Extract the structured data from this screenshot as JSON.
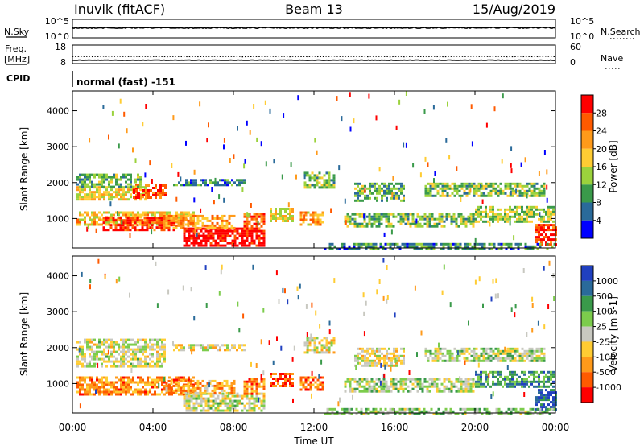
{
  "header": {
    "station": "Inuvik (fitACF)",
    "beam": "Beam 13",
    "date": "15/Aug/2019"
  },
  "top_panels": {
    "nsky": {
      "label": "N.Sky",
      "ytop": "10^5",
      "ybot": "10^0",
      "right_label": "N.Search",
      "rtop": "10^5",
      "rbot": "10^0"
    },
    "freq": {
      "label1": "Freq.",
      "label2": "[MHz]",
      "ytop": "18",
      "ybot": "8",
      "right_label": "Nave",
      "rtop": "60",
      "rbot": "0"
    },
    "cpid": {
      "label": "CPID",
      "text": "normal (fast) -151"
    }
  },
  "chart_data": [
    {
      "type": "heatmap",
      "name": "power",
      "title": "",
      "xlabel": "",
      "ylabel": "Slant Range [km]",
      "xlim": [
        "00:00",
        "24:00"
      ],
      "ylim": [
        180,
        4550
      ],
      "x_ticks": [
        "00:00",
        "04:00",
        "08:00",
        "12:00",
        "16:00",
        "20:00",
        "00:00"
      ],
      "y_ticks": [
        1000,
        2000,
        3000,
        4000
      ],
      "colorbar": {
        "label": "Power [dB]",
        "ticks": [
          "28",
          "24",
          "20",
          "16",
          "12",
          "8",
          "4"
        ],
        "colors": [
          "#ff0000",
          "#ff5a00",
          "#ff9a1a",
          "#ffcc33",
          "#9bd23c",
          "#3a9a4a",
          "#2a6a9a",
          "#0000ff"
        ]
      },
      "blobs": [
        {
          "t0": 0.2,
          "t1": 3.6,
          "r0": 1500,
          "r1": 1900,
          "level": 0.55
        },
        {
          "t0": 3.0,
          "t1": 4.6,
          "r0": 1550,
          "r1": 1950,
          "level": 0.85
        },
        {
          "t0": 0.2,
          "t1": 3.4,
          "r0": 1900,
          "r1": 2250,
          "level": 0.35
        },
        {
          "t0": 0.2,
          "t1": 6.0,
          "r0": 850,
          "r1": 1200,
          "level": 0.6
        },
        {
          "t0": 1.5,
          "t1": 5.0,
          "r0": 700,
          "r1": 1050,
          "level": 0.9
        },
        {
          "t0": 5.5,
          "t1": 9.5,
          "r0": 250,
          "r1": 750,
          "level": 1.0
        },
        {
          "t0": 4.5,
          "t1": 8.0,
          "r0": 750,
          "r1": 1100,
          "level": 0.7
        },
        {
          "t0": 8.5,
          "t1": 9.5,
          "r0": 700,
          "r1": 1150,
          "level": 0.8
        },
        {
          "t0": 9.8,
          "t1": 11.0,
          "r0": 900,
          "r1": 1300,
          "level": 0.55
        },
        {
          "t0": 11.3,
          "t1": 12.5,
          "r0": 800,
          "r1": 1200,
          "level": 0.65
        },
        {
          "t0": 11.5,
          "t1": 13.0,
          "r0": 1850,
          "r1": 2300,
          "level": 0.4
        },
        {
          "t0": 13.5,
          "t1": 20.0,
          "r0": 800,
          "r1": 1150,
          "level": 0.4
        },
        {
          "t0": 14.0,
          "t1": 16.5,
          "r0": 1500,
          "r1": 2000,
          "level": 0.35
        },
        {
          "t0": 17.5,
          "t1": 23.5,
          "r0": 1600,
          "r1": 2000,
          "level": 0.4
        },
        {
          "t0": 20.0,
          "t1": 23.9,
          "r0": 900,
          "r1": 1350,
          "level": 0.45
        },
        {
          "t0": 23.0,
          "t1": 24.0,
          "r0": 250,
          "r1": 850,
          "level": 0.9
        },
        {
          "t0": 12.5,
          "t1": 24.0,
          "r0": 180,
          "r1": 320,
          "level": 0.25
        },
        {
          "t0": 5.0,
          "t1": 8.5,
          "r0": 1900,
          "r1": 2100,
          "level": 0.25
        }
      ]
    },
    {
      "type": "heatmap",
      "name": "velocity",
      "title": "",
      "xlabel": "Time UT",
      "ylabel": "Slant Range [km]",
      "xlim": [
        "00:00",
        "24:00"
      ],
      "ylim": [
        180,
        4550
      ],
      "x_ticks": [
        "00:00",
        "04:00",
        "08:00",
        "12:00",
        "16:00",
        "20:00",
        "00:00"
      ],
      "y_ticks": [
        1000,
        2000,
        3000,
        4000
      ],
      "colorbar": {
        "label": "Velocity [m s-1]",
        "ticks": [
          "1000",
          "500",
          "100",
          "25",
          "-25",
          "-100",
          "-500",
          "-1000"
        ],
        "colors": [
          "#2040c0",
          "#2a6a9a",
          "#3a9a4a",
          "#7ccc4c",
          "#c8c8c0",
          "#ffcc33",
          "#ff9a1a",
          "#ff5a00",
          "#ff0000"
        ]
      },
      "blobs": [
        {
          "t0": 0.2,
          "t1": 4.6,
          "r0": 1500,
          "r1": 2250,
          "level": 0.5
        },
        {
          "t0": 0.2,
          "t1": 6.0,
          "r0": 700,
          "r1": 1200,
          "level": 0.25
        },
        {
          "t0": 5.5,
          "t1": 9.5,
          "r0": 250,
          "r1": 750,
          "level": 0.5
        },
        {
          "t0": 4.5,
          "t1": 8.0,
          "r0": 750,
          "r1": 1100,
          "level": 0.3
        },
        {
          "t0": 8.5,
          "t1": 9.5,
          "r0": 700,
          "r1": 1150,
          "level": 0.25
        },
        {
          "t0": 9.8,
          "t1": 11.0,
          "r0": 900,
          "r1": 1300,
          "level": 0.15
        },
        {
          "t0": 11.3,
          "t1": 12.5,
          "r0": 800,
          "r1": 1200,
          "level": 0.2
        },
        {
          "t0": 11.5,
          "t1": 13.0,
          "r0": 1850,
          "r1": 2300,
          "level": 0.45
        },
        {
          "t0": 13.5,
          "t1": 20.0,
          "r0": 800,
          "r1": 1150,
          "level": 0.55
        },
        {
          "t0": 14.0,
          "t1": 16.5,
          "r0": 1500,
          "r1": 2000,
          "level": 0.45
        },
        {
          "t0": 17.5,
          "t1": 23.5,
          "r0": 1600,
          "r1": 2000,
          "level": 0.55
        },
        {
          "t0": 20.0,
          "t1": 23.9,
          "r0": 900,
          "r1": 1350,
          "level": 0.75
        },
        {
          "t0": 23.0,
          "t1": 24.0,
          "r0": 250,
          "r1": 850,
          "level": 0.9
        },
        {
          "t0": 12.5,
          "t1": 24.0,
          "r0": 180,
          "r1": 320,
          "level": 0.6
        },
        {
          "t0": 5.0,
          "t1": 8.5,
          "r0": 1900,
          "r1": 2100,
          "level": 0.45
        }
      ]
    }
  ]
}
